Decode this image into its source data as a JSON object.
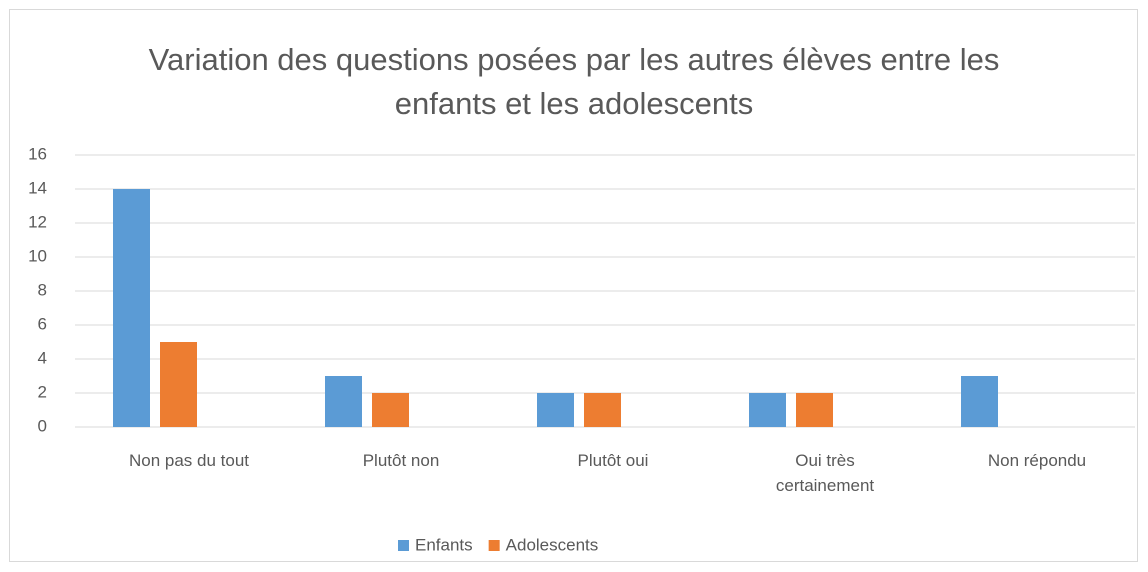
{
  "chart_data": {
    "type": "bar",
    "title": "Variation des questions posées par les autres élèves entre les enfants et les adolescents",
    "categories": [
      "Non pas du tout",
      "Plutôt non",
      "Plutôt oui",
      "Oui très certainement",
      "Non répondu"
    ],
    "series": [
      {
        "name": "Enfants",
        "color": "#5b9bd5",
        "values": [
          14,
          3,
          2,
          2,
          3
        ]
      },
      {
        "name": "Adolescents",
        "color": "#ed7d31",
        "values": [
          5,
          2,
          2,
          2,
          0
        ]
      }
    ],
    "ylim": [
      0,
      16
    ],
    "yticks": [
      0,
      2,
      4,
      6,
      8,
      10,
      12,
      14,
      16
    ],
    "grid": true,
    "legend": "bottom"
  }
}
